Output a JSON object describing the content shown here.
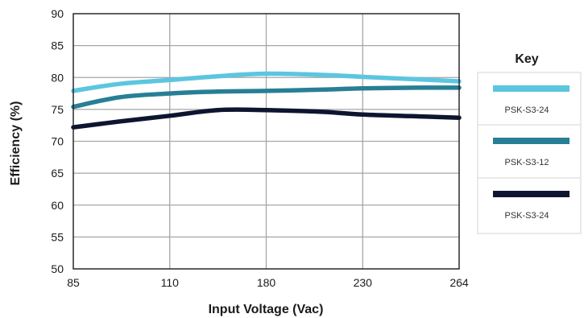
{
  "chart_data": {
    "type": "line",
    "xlabel": "Input Voltage (Vac)",
    "ylabel": "Efficiency (%)",
    "x_ticks": [
      85,
      110,
      180,
      230,
      264
    ],
    "y_ticks": [
      50,
      55,
      60,
      65,
      70,
      75,
      80,
      85,
      90
    ],
    "ylim": [
      50,
      90
    ],
    "grid": true,
    "legend_title": "Key",
    "legend_position": "right",
    "series": [
      {
        "name": "PSK-S3-24",
        "color": "#5cc6df",
        "x": [
          85,
          97,
          110,
          145,
          180,
          210,
          230,
          250,
          264
        ],
        "y": [
          77.9,
          79.0,
          79.6,
          80.2,
          80.6,
          80.4,
          80.1,
          79.7,
          79.4
        ]
      },
      {
        "name": "PSK-S3-12",
        "color": "#287f95",
        "x": [
          85,
          97,
          110,
          145,
          180,
          210,
          230,
          250,
          264
        ],
        "y": [
          75.4,
          76.9,
          77.5,
          77.8,
          77.9,
          78.1,
          78.3,
          78.4,
          78.4
        ]
      },
      {
        "name": "PSK-S3-24",
        "color": "#0d1530",
        "x": [
          85,
          97,
          110,
          145,
          180,
          210,
          230,
          250,
          264
        ],
        "y": [
          72.2,
          73.1,
          74.0,
          74.9,
          74.9,
          74.6,
          74.2,
          73.9,
          73.7
        ]
      }
    ]
  }
}
